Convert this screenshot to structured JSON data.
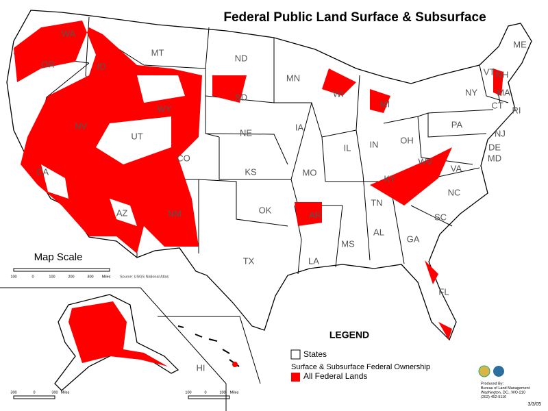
{
  "header": {
    "title": "Federal Public Land Surface & Subsurface"
  },
  "states": [
    "WA",
    "OR",
    "CA",
    "ID",
    "NV",
    "MT",
    "WY",
    "UT",
    "CO",
    "AZ",
    "NM",
    "ND",
    "SD",
    "NE",
    "KS",
    "OK",
    "TX",
    "MN",
    "IA",
    "MO",
    "AR",
    "LA",
    "WI",
    "IL",
    "MI",
    "IN",
    "OH",
    "KY",
    "TN",
    "MS",
    "AL",
    "GA",
    "FL",
    "SC",
    "NC",
    "VA",
    "WV",
    "PA",
    "NY",
    "VT",
    "NH",
    "ME",
    "MA",
    "CT",
    "RI",
    "NJ",
    "DE",
    "MD",
    "HI"
  ],
  "scale": {
    "title": "Map Scale",
    "source": "Source: USGS National Atlas",
    "contiguous": [
      "100",
      "0",
      "100",
      "200",
      "300",
      "Miles"
    ],
    "alaska": [
      "300",
      "0",
      "300",
      "Miles"
    ],
    "hawaii": [
      "100",
      "0",
      "100",
      "Miles"
    ]
  },
  "legend": {
    "title": "LEGEND",
    "states": "States",
    "subtitle": "Surface & Subsurface Federal Ownership",
    "federal": "All Federal Lands"
  },
  "credit": {
    "lines": [
      "Produced By:",
      "Bureau of Land Management",
      "Washington, DC., WO-210",
      "(202) 452-5110"
    ],
    "date": "3/3/05"
  }
}
